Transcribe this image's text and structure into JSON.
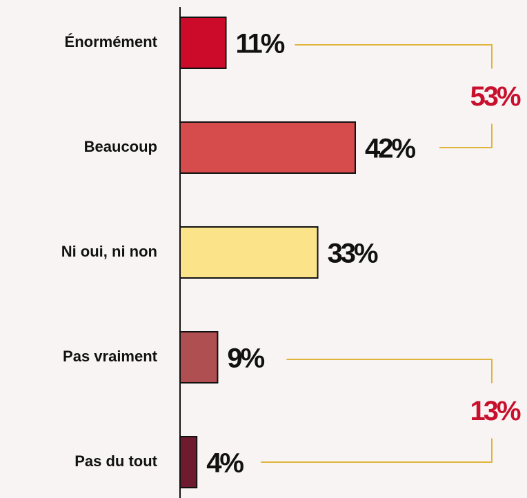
{
  "chart_data": {
    "type": "bar",
    "orientation": "horizontal",
    "categories": [
      "Énormément",
      "Beaucoup",
      "Ni oui, ni non",
      "Pas vraiment",
      "Pas du tout"
    ],
    "values": [
      11,
      42,
      33,
      9,
      4
    ],
    "value_labels": [
      "11%",
      "42%",
      "33%",
      "9%",
      "4%"
    ],
    "colors": [
      "#cc0a2a",
      "#d64b4b",
      "#fbe38a",
      "#b04f52",
      "#6e1a2f"
    ],
    "annotations": [
      {
        "value": 53,
        "label": "53%",
        "range": [
          0,
          1
        ]
      },
      {
        "value": 13,
        "label": "13%",
        "range": [
          3,
          4
        ]
      }
    ]
  }
}
